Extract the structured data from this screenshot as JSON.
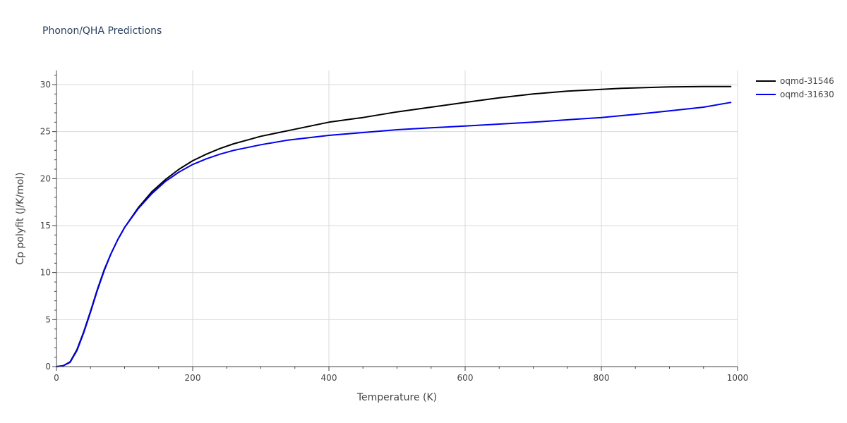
{
  "chart_data": {
    "type": "line",
    "title": "Phonon/QHA Predictions",
    "xlabel": "Temperature (K)",
    "ylabel": "Cp polyfit (J/K/mol)",
    "xlim": [
      0,
      1000
    ],
    "ylim": [
      0,
      31.5
    ],
    "xticks": [
      0,
      200,
      400,
      600,
      800,
      1000
    ],
    "yticks": [
      0,
      5,
      10,
      15,
      20,
      25,
      30
    ],
    "grid": true,
    "legend_position": "top-right",
    "series": [
      {
        "name": "oqmd-31546",
        "color": "#000000",
        "x": [
          0,
          10,
          20,
          30,
          40,
          50,
          60,
          70,
          80,
          90,
          100,
          120,
          140,
          160,
          180,
          200,
          220,
          240,
          260,
          280,
          300,
          340,
          400,
          450,
          500,
          550,
          600,
          650,
          700,
          750,
          800,
          830,
          900,
          950,
          990
        ],
        "y": [
          0,
          0.1,
          0.5,
          1.8,
          3.7,
          5.9,
          8.2,
          10.3,
          12.0,
          13.5,
          14.8,
          16.9,
          18.6,
          19.9,
          21.0,
          21.9,
          22.6,
          23.2,
          23.7,
          24.1,
          24.5,
          25.1,
          26.0,
          26.5,
          27.1,
          27.6,
          28.1,
          28.6,
          29.0,
          29.3,
          29.5,
          29.6,
          29.75,
          29.8,
          29.8
        ]
      },
      {
        "name": "oqmd-31630",
        "color": "#0000ee",
        "x": [
          0,
          10,
          20,
          30,
          40,
          50,
          60,
          70,
          80,
          90,
          100,
          120,
          140,
          160,
          180,
          200,
          220,
          240,
          260,
          280,
          300,
          340,
          400,
          450,
          500,
          550,
          600,
          650,
          700,
          760,
          800,
          860,
          900,
          950,
          990
        ],
        "y": [
          0,
          0.1,
          0.45,
          1.7,
          3.6,
          5.8,
          8.1,
          10.2,
          12.0,
          13.5,
          14.8,
          16.8,
          18.4,
          19.7,
          20.7,
          21.5,
          22.1,
          22.6,
          23.0,
          23.3,
          23.6,
          24.1,
          24.6,
          24.9,
          25.2,
          25.4,
          25.6,
          25.8,
          26.0,
          26.3,
          26.5,
          26.9,
          27.2,
          27.6,
          28.1
        ]
      }
    ]
  }
}
